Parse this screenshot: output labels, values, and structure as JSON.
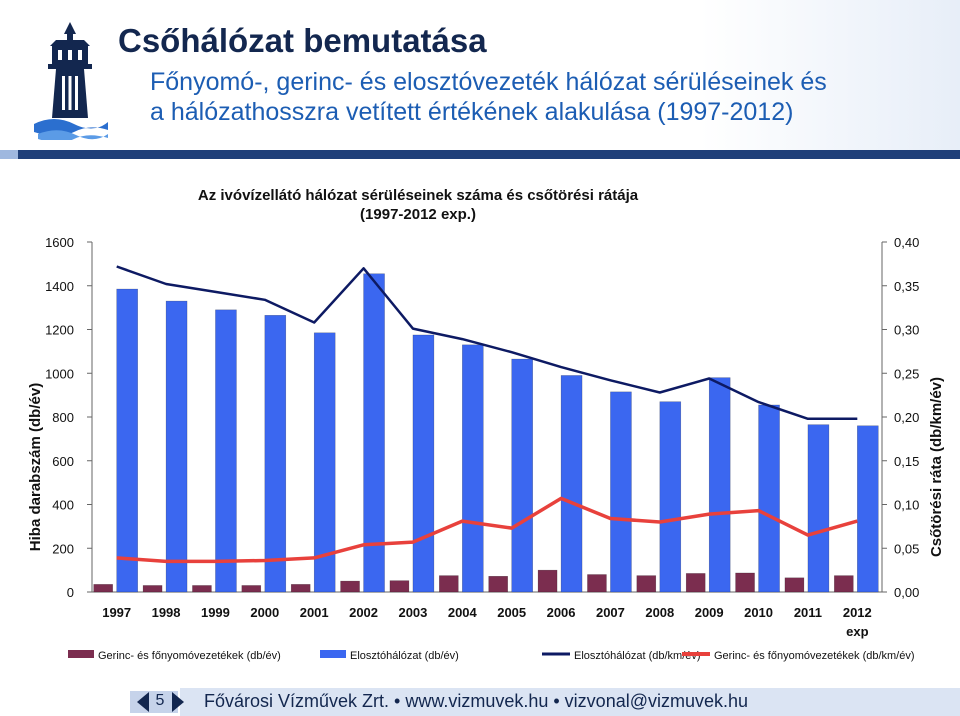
{
  "slide": {
    "title": "Csőhálózat bemutatása",
    "subtitle_line1": "Főnyomó-, gerinc- és elosztóvezeték hálózat sérüléseinek és",
    "subtitle_line2": "a hálózathosszra vetített értékének alakulása (1997-2012)",
    "page_number": "5",
    "footer": "Fővárosi Vízművek Zrt. • www.vizmuvek.hu • vizvonal@vizmuvek.hu"
  },
  "colors": {
    "title": "#13274f",
    "subtitle": "#1c5db3",
    "bar_mains": "#7b2d4f",
    "bar_distribution": "#3b67f0",
    "line_distribution": "#0d1a63",
    "line_mains": "#e8413c"
  },
  "icons": {
    "logo": "water-tower-logo-icon",
    "prev": "previous-slide-icon",
    "next": "next-slide-icon"
  },
  "chart_data": {
    "type": "bar",
    "title_line1": "Az ivóvízellátó hálózat sérüléseinek száma és csőtörési rátája",
    "title_line2": "(1997-2012 exp.)",
    "ylabel": "Hiba darabszám (db/év)",
    "y2label": "Csőtörési ráta (db/km/év)",
    "categories": [
      "1997",
      "1998",
      "1999",
      "2000",
      "2001",
      "2002",
      "2003",
      "2004",
      "2005",
      "2006",
      "2007",
      "2008",
      "2009",
      "2010",
      "2011",
      "2012"
    ],
    "category_sublabels": [
      "",
      "",
      "",
      "",
      "",
      "",
      "",
      "",
      "",
      "",
      "",
      "",
      "",
      "",
      "",
      "exp"
    ],
    "ylim": [
      0,
      1600
    ],
    "y_ticks": [
      0,
      200,
      400,
      600,
      800,
      1000,
      1200,
      1400,
      1600
    ],
    "y_tick_labels": [
      "0",
      "200",
      "400",
      "600",
      "800",
      "1000",
      "1200",
      "1400",
      "1600"
    ],
    "y2lim": [
      0,
      0.4
    ],
    "y2_ticks": [
      0,
      0.05,
      0.1,
      0.15,
      0.2,
      0.25,
      0.3,
      0.35,
      0.4
    ],
    "y2_tick_labels": [
      "0,00",
      "0,05",
      "0,10",
      "0,15",
      "0,20",
      "0,25",
      "0,30",
      "0,35",
      "0,40"
    ],
    "grid": false,
    "legend_position": "bottom",
    "series": [
      {
        "name": "Gerinc- és főnyomóvezetékek (db/év)",
        "kind": "bar",
        "axis": "left",
        "color": "#7b2d4f",
        "values": [
          35,
          30,
          30,
          30,
          35,
          50,
          52,
          75,
          72,
          100,
          80,
          75,
          85,
          87,
          65,
          75
        ]
      },
      {
        "name": "Elosztóhálózat (db/év)",
        "kind": "bar",
        "axis": "left",
        "color": "#3b67f0",
        "values": [
          1385,
          1330,
          1290,
          1265,
          1185,
          1455,
          1175,
          1130,
          1065,
          990,
          915,
          870,
          980,
          855,
          765,
          760
        ]
      },
      {
        "name": "Elosztóhálózat (db/km/év)",
        "kind": "line",
        "axis": "right",
        "color": "#0d1a63",
        "values": [
          0.372,
          0.352,
          0.343,
          0.334,
          0.308,
          0.37,
          0.301,
          0.289,
          0.274,
          0.257,
          0.242,
          0.228,
          0.244,
          0.217,
          0.198,
          0.198
        ]
      },
      {
        "name": "Gerinc- és főnyomóvezetékek (db/km/év)",
        "kind": "line",
        "axis": "right",
        "color": "#e8413c",
        "values": [
          0.039,
          0.035,
          0.035,
          0.036,
          0.039,
          0.054,
          0.057,
          0.081,
          0.073,
          0.107,
          0.084,
          0.08,
          0.089,
          0.093,
          0.065,
          0.081
        ]
      }
    ]
  }
}
